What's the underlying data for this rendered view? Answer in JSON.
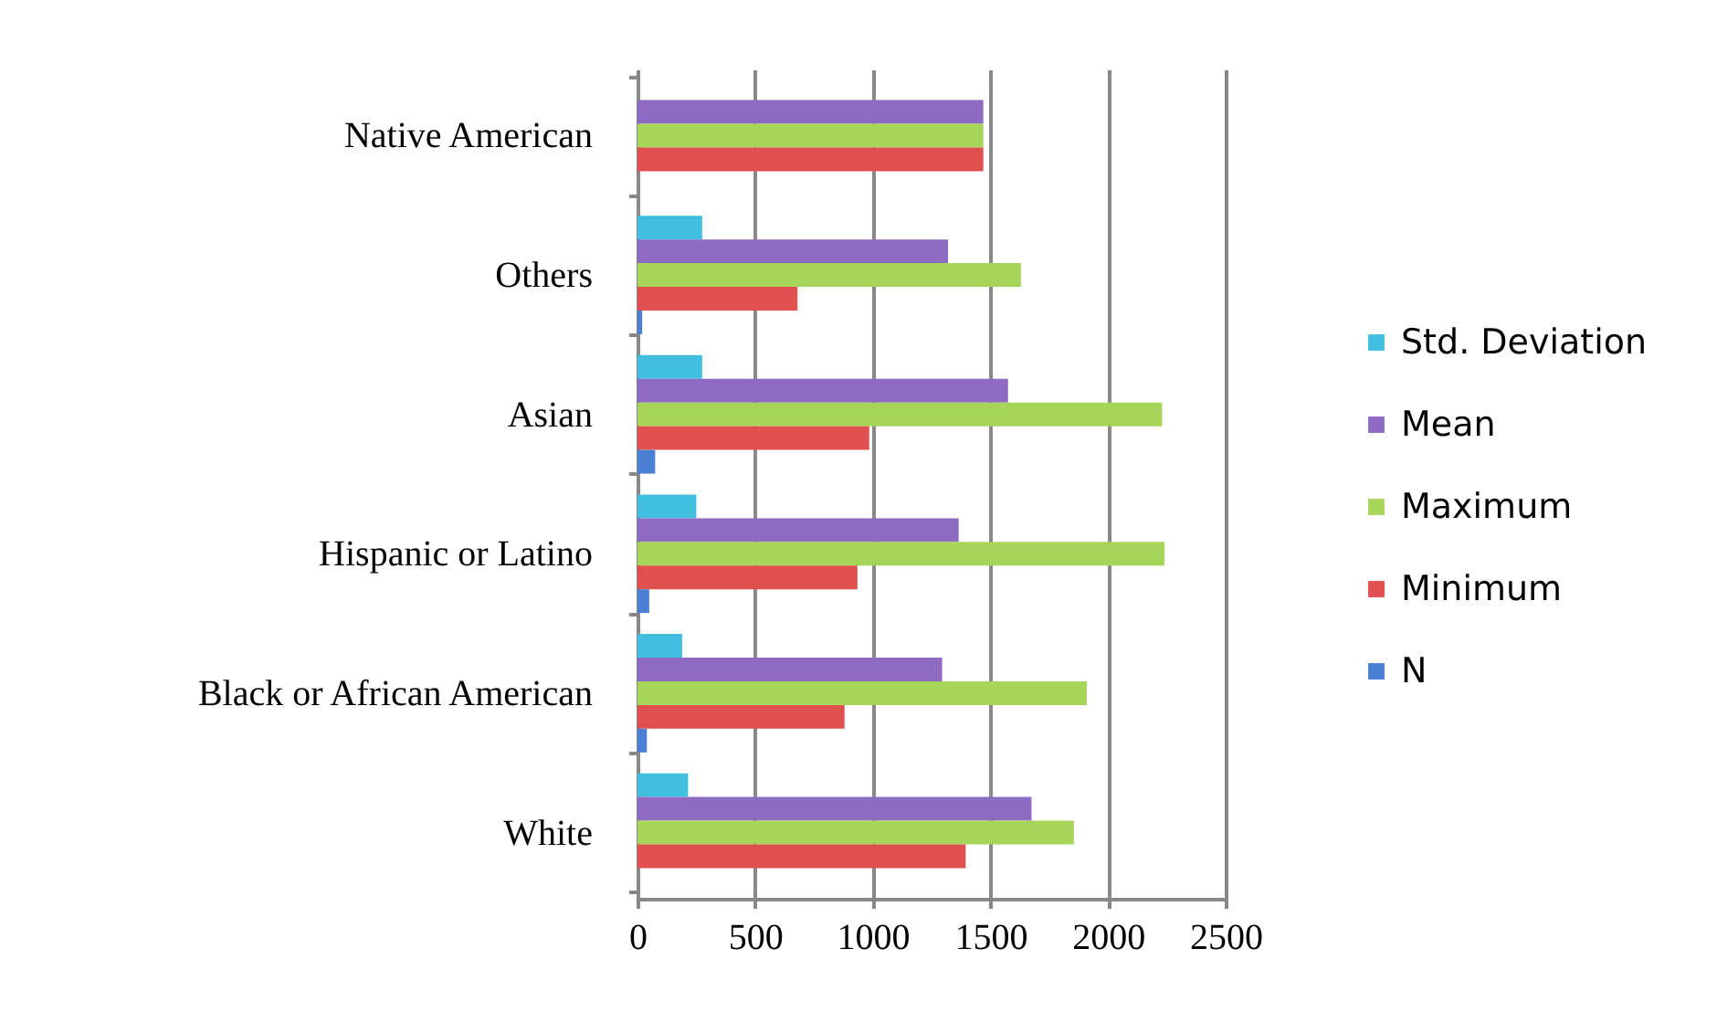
{
  "chart_data": {
    "type": "bar",
    "orientation": "horizontal",
    "categories": [
      "Native American",
      "Others",
      "Asian",
      "Hispanic or Latino",
      "Black or African American",
      "White"
    ],
    "series": [
      {
        "name": "Std. Deviation",
        "color": "#40bfe0",
        "values": [
          null,
          275,
          275,
          250,
          190,
          215
        ]
      },
      {
        "name": "Mean",
        "color": "#8e6bc2",
        "values": [
          1470,
          1320,
          1575,
          1365,
          1295,
          1675
        ]
      },
      {
        "name": "Maximum",
        "color": "#a6d55a",
        "values": [
          1470,
          1630,
          2230,
          2240,
          1910,
          1855
        ]
      },
      {
        "name": "Minimum",
        "color": "#e0504e",
        "values": [
          1470,
          680,
          985,
          935,
          880,
          1395
        ]
      },
      {
        "name": "N",
        "color": "#4a7fd4",
        "values": [
          null,
          20,
          75,
          50,
          40,
          null
        ]
      }
    ],
    "xlim": [
      0,
      2500
    ],
    "xticks": [
      0,
      500,
      1000,
      1500,
      2000,
      2500
    ],
    "grid": "x",
    "legend": "right"
  }
}
